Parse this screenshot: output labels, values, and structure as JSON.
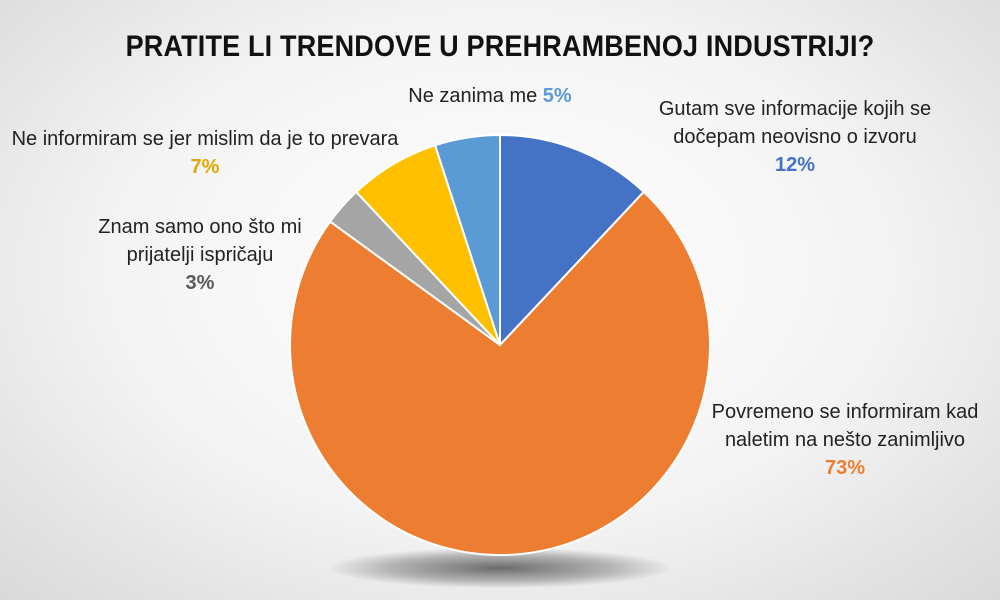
{
  "chart_data": {
    "type": "pie",
    "title": "PRATITE LI TRENDOVE U PREHRAMBENOJ INDUSTRIJI?",
    "slices": [
      {
        "label_lines": [
          "Gutam sve informacije kojih se",
          "dočepam neovisno o izvoru"
        ],
        "value": 12,
        "pct_label": "12%",
        "color": "#4472C4"
      },
      {
        "label_lines": [
          "Povremeno se informiram kad",
          "naletim na nešto zanimljivo"
        ],
        "value": 73,
        "pct_label": "73%",
        "color": "#ED7D31"
      },
      {
        "label_lines": [
          "Znam samo ono što mi",
          "prijatelji ispričaju"
        ],
        "value": 3,
        "pct_label": "3%",
        "color": "#A5A5A5",
        "pct_color": "#595959"
      },
      {
        "label_lines": [
          "Ne informiram se jer mislim da je to prevara"
        ],
        "value": 7,
        "pct_label": "7%",
        "color": "#FFC000",
        "pct_color": "#E0A800"
      },
      {
        "label_lines": [
          "Ne zanima me"
        ],
        "value": 5,
        "pct_label": "5%",
        "color": "#5B9BD5",
        "pct_inline": true
      }
    ]
  }
}
